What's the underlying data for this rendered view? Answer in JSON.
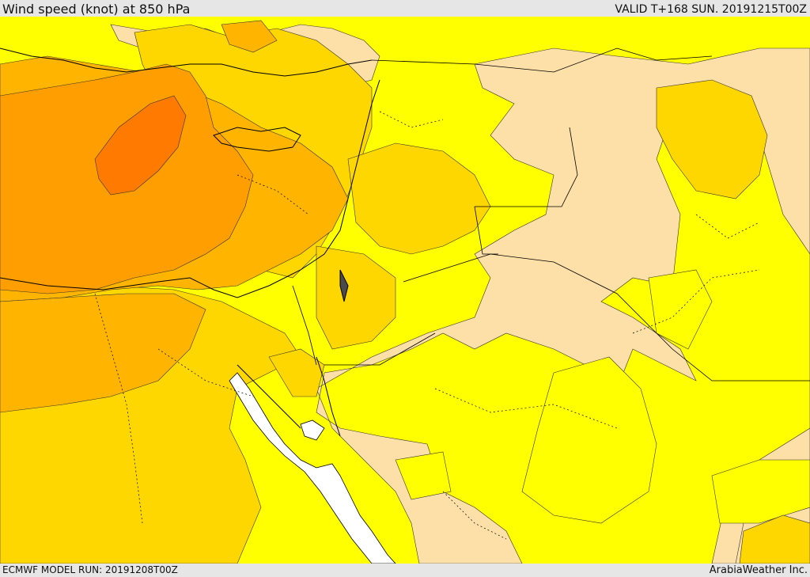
{
  "header": {
    "title": "Wind speed (knot) at 850 hPa",
    "valid": "VALID T+168 SUN. 20191215T00Z"
  },
  "footer": {
    "model_run": "ECMWF MODEL RUN: 20191208T00Z",
    "credit": "ArabiaWeather Inc."
  },
  "map": {
    "colors": {
      "band_light": "#fde0a8",
      "band_yellow": "#ffff00",
      "band_gold": "#ffd700",
      "band_amber": "#ffb400",
      "band_orange": "#ff9e00",
      "band_deep_orange": "#ff7a00",
      "water_no_data": "#ffffff",
      "coastline": "#000000"
    }
  }
}
